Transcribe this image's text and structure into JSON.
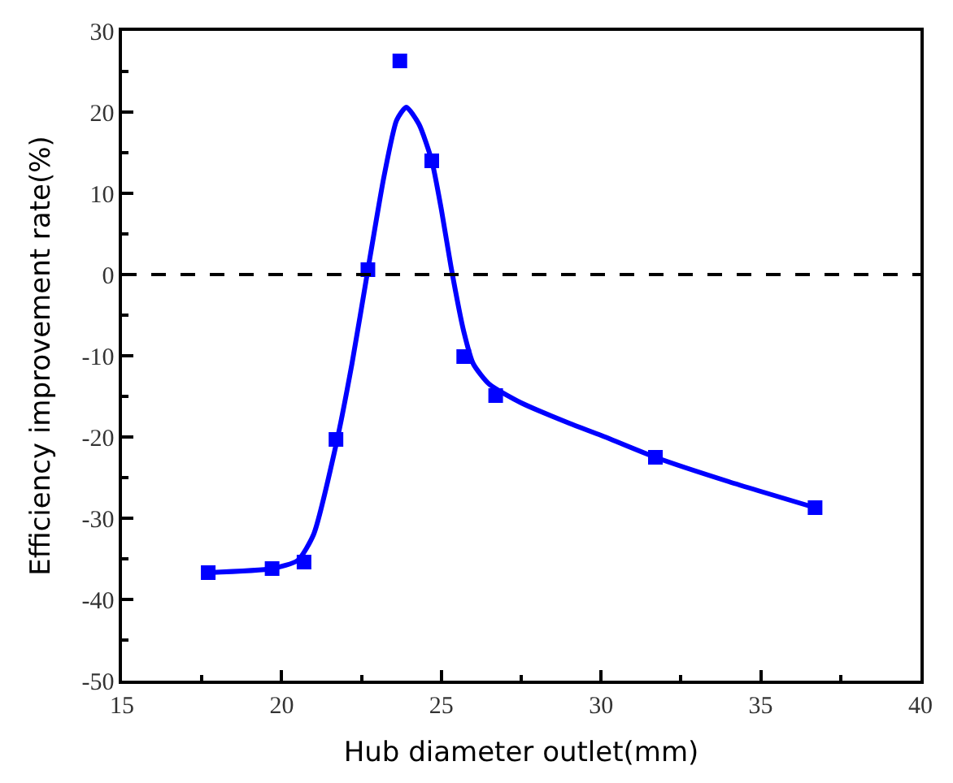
{
  "chart_data": {
    "type": "scatter",
    "xlabel": "Hub diameter outlet(mm)",
    "ylabel": "Efficiency improvement rate(%)",
    "xlim": [
      15,
      40
    ],
    "xticks": [
      15,
      20,
      25,
      30,
      35,
      40
    ],
    "ylim": [
      -50,
      30
    ],
    "yticks": [
      -50,
      -40,
      -30,
      -20,
      -10,
      0,
      10,
      20,
      30
    ],
    "grid": false,
    "marker": "square",
    "ref_lines": [
      {
        "axis": "y",
        "value": 0,
        "color": "#000000",
        "line_style": "dashed"
      }
    ],
    "series": [
      {
        "color": "#0000ff",
        "x": [
          17.7,
          19.7,
          20.7,
          21.7,
          22.7,
          23.7,
          24.7,
          25.7,
          26.7,
          31.7,
          36.7
        ],
        "values": [
          -36.7,
          -36.2,
          -35.4,
          -20.3,
          0.6,
          26.3,
          14.0,
          -10.1,
          -14.9,
          -22.5,
          -28.7
        ]
      },
      {
        "type": "line",
        "color": "#0000ff",
        "line_style": "solid",
        "marker": "none",
        "x": [
          17.7,
          19.7,
          20.5,
          21.0,
          21.7,
          22.2,
          22.7,
          23.2,
          23.6,
          23.9,
          24.3,
          24.7,
          25.0,
          25.3,
          25.7,
          26.0,
          26.5,
          27.5,
          29,
          30,
          31.7,
          34,
          36.7
        ],
        "values": [
          -36.7,
          -36.2,
          -35.2,
          -32,
          -21,
          -11,
          0.6,
          12,
          19,
          20.6,
          18.5,
          14,
          8,
          1,
          -7,
          -11,
          -13.5,
          -15.8,
          -18.3,
          -19.8,
          -22.5,
          -25.5,
          -28.7
        ]
      }
    ]
  }
}
